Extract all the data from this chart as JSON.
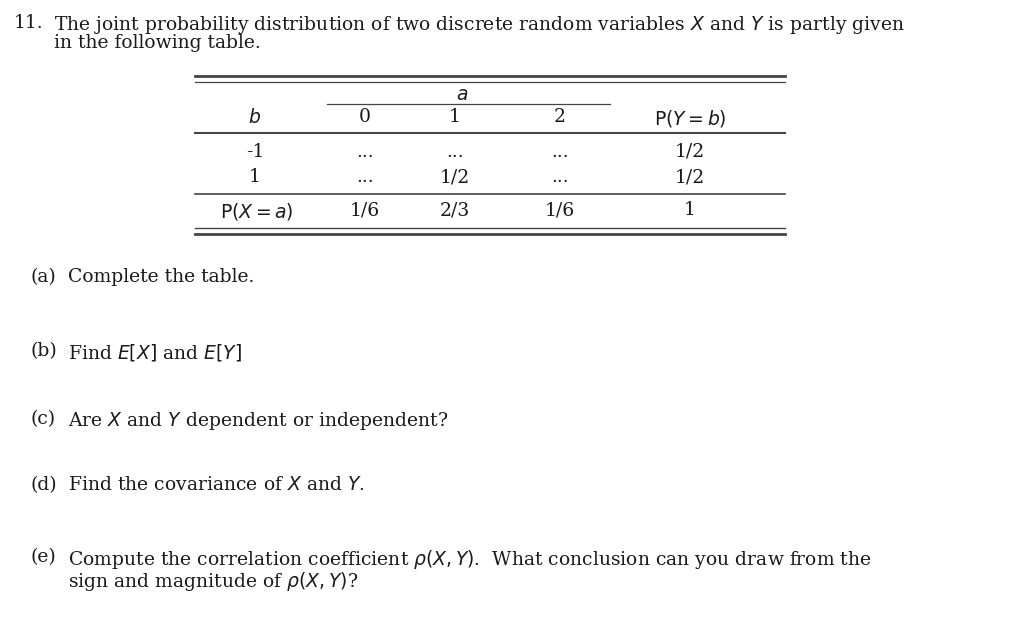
{
  "bg_color": "#ffffff",
  "text_color": "#1a1a1a",
  "line_color": "#444444",
  "title_num": "11.",
  "title_line1": "The joint probability distribution of two discrete random variables $X$ and $Y$ is partly given",
  "title_line2": "in the following table.",
  "col_headers_italic": [
    "$b$",
    "0",
    "1",
    "2"
  ],
  "col_header_last": "$\\mathrm{P}(Y=b)$",
  "group_header": "$a$",
  "rows": [
    [
      "-1",
      "...",
      "...",
      "...",
      "1/2"
    ],
    [
      "1",
      "...",
      "1/2",
      "...",
      "1/2"
    ],
    [
      "$\\mathrm{P}(X=a)$",
      "1/6",
      "2/3",
      "1/6",
      "1"
    ]
  ],
  "qa": "(a)",
  "qb": "(b)",
  "qc": "(c)",
  "qd": "(d)",
  "qe": "(e)",
  "ta": "Complete the table.",
  "tb": "Find $E[X]$ and $E[Y]$",
  "tc": "Are $X$ and $Y$ dependent or independent?",
  "td": "Find the covariance of $X$ and $Y$.",
  "te1": "Compute the correlation coefficient $\\rho(X,Y)$.  What conclusion can you draw from the",
  "te2": "sign and magnitude of $\\rho(X,Y)$?"
}
